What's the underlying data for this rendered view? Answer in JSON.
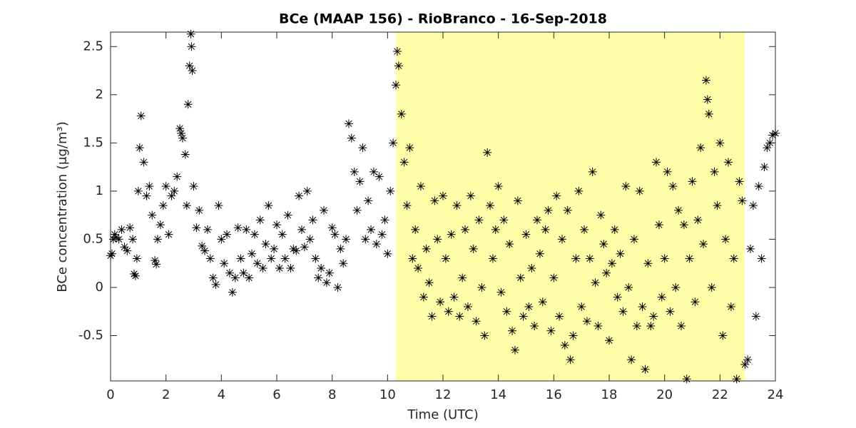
{
  "chart_data": {
    "type": "scatter",
    "title": "BCe (MAAP 156) - RioBranco - 16-Sep-2018",
    "xlabel": "Time (UTC)",
    "ylabel": "BCe concentration (μg/m³)",
    "marker": "asterisk",
    "color": "#000000",
    "shaded_region": [
      10.3,
      22.9
    ],
    "shaded_color": "#ffffaa",
    "xlim": [
      0,
      24
    ],
    "xticks": [
      0,
      2,
      4,
      6,
      8,
      10,
      12,
      14,
      16,
      18,
      20,
      22,
      24
    ],
    "ylim": [
      -0.97,
      2.65
    ],
    "yticks": [
      -0.5,
      0,
      0.5,
      1,
      1.5,
      2,
      2.5
    ],
    "x": [
      0.0,
      0.05,
      0.1,
      0.15,
      0.2,
      0.3,
      0.4,
      0.5,
      0.6,
      0.7,
      0.8,
      0.85,
      0.9,
      0.95,
      1.0,
      1.05,
      1.1,
      1.2,
      1.3,
      1.4,
      1.5,
      1.6,
      1.65,
      1.7,
      1.8,
      1.9,
      2.0,
      2.1,
      2.2,
      2.3,
      2.4,
      2.5,
      2.55,
      2.6,
      2.7,
      2.75,
      2.8,
      2.85,
      2.9,
      2.92,
      2.95,
      3.0,
      3.1,
      3.2,
      3.3,
      3.4,
      3.5,
      3.6,
      3.7,
      3.8,
      3.9,
      4.0,
      4.1,
      4.2,
      4.3,
      4.4,
      4.5,
      4.6,
      4.7,
      4.8,
      4.9,
      5.0,
      5.1,
      5.2,
      5.3,
      5.4,
      5.5,
      5.6,
      5.7,
      5.8,
      5.9,
      6.0,
      6.1,
      6.2,
      6.3,
      6.4,
      6.5,
      6.6,
      6.7,
      6.8,
      6.9,
      7.0,
      7.1,
      7.2,
      7.3,
      7.4,
      7.5,
      7.6,
      7.7,
      7.8,
      7.9,
      8.0,
      8.1,
      8.2,
      8.3,
      8.4,
      8.5,
      8.6,
      8.7,
      8.8,
      8.9,
      9.0,
      9.1,
      9.2,
      9.3,
      9.4,
      9.5,
      9.6,
      9.7,
      9.8,
      9.9,
      10.0,
      10.1,
      10.2,
      10.3,
      10.35,
      10.4,
      10.5,
      10.6,
      10.7,
      10.8,
      10.9,
      11.0,
      11.1,
      11.2,
      11.3,
      11.4,
      11.5,
      11.6,
      11.7,
      11.8,
      11.9,
      12.0,
      12.1,
      12.2,
      12.3,
      12.4,
      12.5,
      12.6,
      12.7,
      12.8,
      12.9,
      13.0,
      13.1,
      13.2,
      13.3,
      13.4,
      13.5,
      13.6,
      13.7,
      13.8,
      13.9,
      14.0,
      14.1,
      14.2,
      14.3,
      14.4,
      14.5,
      14.6,
      14.7,
      14.8,
      14.9,
      15.0,
      15.1,
      15.2,
      15.3,
      15.4,
      15.5,
      15.6,
      15.7,
      15.8,
      15.9,
      16.0,
      16.1,
      16.2,
      16.3,
      16.4,
      16.5,
      16.6,
      16.7,
      16.8,
      16.9,
      17.0,
      17.1,
      17.2,
      17.3,
      17.4,
      17.5,
      17.6,
      17.7,
      17.8,
      17.9,
      18.0,
      18.1,
      18.2,
      18.3,
      18.4,
      18.5,
      18.6,
      18.7,
      18.8,
      18.9,
      19.0,
      19.1,
      19.2,
      19.3,
      19.4,
      19.5,
      19.6,
      19.7,
      19.8,
      19.9,
      20.0,
      20.1,
      20.2,
      20.3,
      20.4,
      20.5,
      20.6,
      20.7,
      20.8,
      20.9,
      21.0,
      21.1,
      21.2,
      21.3,
      21.4,
      21.5,
      21.55,
      21.6,
      21.7,
      21.8,
      21.9,
      22.0,
      22.1,
      22.2,
      22.3,
      22.4,
      22.5,
      22.6,
      22.7,
      22.8,
      22.9,
      23.0,
      23.1,
      23.2,
      23.3,
      23.4,
      23.5,
      23.6,
      23.7,
      23.8,
      23.9,
      24.0
    ],
    "values": [
      0.33,
      0.35,
      0.5,
      0.55,
      0.52,
      0.5,
      0.6,
      0.42,
      0.38,
      0.62,
      0.5,
      0.14,
      0.12,
      0.3,
      1.0,
      1.45,
      1.78,
      1.3,
      0.95,
      1.05,
      0.75,
      0.28,
      0.24,
      0.5,
      0.65,
      0.85,
      1.05,
      0.55,
      0.95,
      1.0,
      1.15,
      1.65,
      1.6,
      1.55,
      1.38,
      0.85,
      1.9,
      2.3,
      2.63,
      2.5,
      2.25,
      1.05,
      0.62,
      0.8,
      0.43,
      0.38,
      0.6,
      0.3,
      0.1,
      0.03,
      0.85,
      0.5,
      0.25,
      0.55,
      0.15,
      -0.05,
      0.1,
      0.62,
      0.3,
      0.15,
      0.6,
      0.1,
      0.35,
      0.55,
      0.25,
      0.7,
      0.2,
      0.45,
      0.85,
      0.3,
      0.4,
      0.65,
      0.2,
      0.55,
      0.3,
      0.75,
      0.2,
      0.4,
      0.38,
      0.95,
      0.6,
      0.42,
      1.0,
      0.5,
      0.7,
      0.3,
      0.1,
      0.2,
      0.8,
      0.05,
      0.15,
      0.62,
      0.55,
      0.0,
      0.4,
      0.25,
      0.5,
      1.7,
      1.55,
      1.2,
      0.8,
      1.1,
      1.45,
      0.5,
      0.9,
      0.6,
      1.2,
      0.45,
      1.15,
      0.55,
      0.7,
      0.35,
      1.0,
      1.5,
      2.1,
      2.45,
      2.3,
      1.8,
      1.3,
      0.85,
      1.45,
      0.3,
      0.6,
      0.2,
      1.05,
      -0.1,
      0.4,
      0.05,
      -0.3,
      0.9,
      0.5,
      -0.15,
      0.95,
      0.3,
      -0.25,
      0.55,
      -0.1,
      0.85,
      -0.3,
      0.1,
      0.6,
      -0.2,
      0.95,
      0.4,
      -0.35,
      0.7,
      0.0,
      -0.5,
      1.4,
      0.85,
      0.3,
      0.6,
      1.05,
      -0.05,
      0.7,
      -0.25,
      0.45,
      -0.45,
      -0.65,
      0.9,
      0.1,
      -0.3,
      0.55,
      -0.2,
      0.2,
      -0.4,
      0.7,
      0.35,
      -0.15,
      0.6,
      0.8,
      -0.45,
      0.1,
      0.95,
      -0.3,
      0.5,
      -0.6,
      0.8,
      -0.75,
      -0.5,
      0.3,
      1.0,
      -0.2,
      0.6,
      -0.35,
      0.3,
      1.2,
      0.05,
      -0.4,
      0.75,
      0.45,
      0.15,
      -0.55,
      0.25,
      0.6,
      -0.1,
      0.35,
      -0.25,
      1.05,
      0.0,
      -0.75,
      0.5,
      -0.4,
      1.0,
      -0.2,
      -0.85,
      0.25,
      -0.4,
      -0.3,
      1.3,
      0.65,
      -0.1,
      0.3,
      1.2,
      -0.25,
      1.05,
      0.0,
      0.8,
      -0.4,
      0.65,
      -0.95,
      0.3,
      1.1,
      -0.15,
      0.7,
      1.45,
      0.45,
      2.15,
      1.95,
      1.8,
      0.0,
      1.2,
      0.85,
      1.5,
      -0.5,
      0.5,
      1.3,
      -0.2,
      0.3,
      -0.95,
      1.1,
      0.9,
      -0.8,
      -0.75,
      0.4,
      0.85,
      -0.3,
      1.05,
      0.3,
      1.25,
      1.45,
      1.5,
      1.58,
      1.6
    ]
  }
}
